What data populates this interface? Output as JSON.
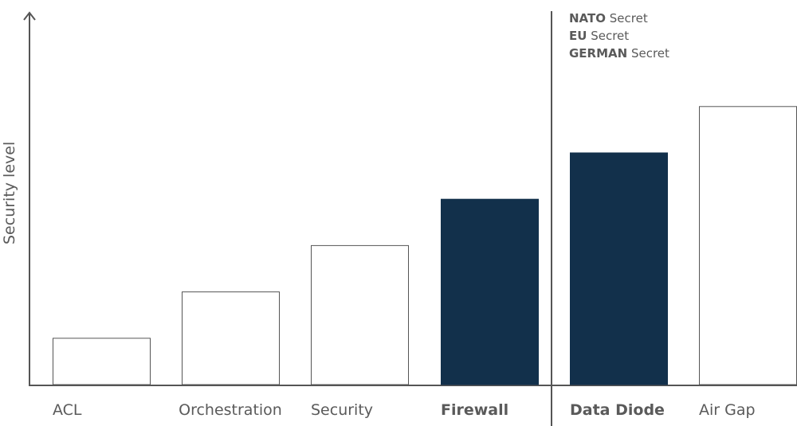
{
  "chart_data": {
    "type": "bar",
    "title": "",
    "xlabel": "",
    "ylabel": "Security level",
    "categories": [
      "ACL",
      "Orchestration",
      "Security",
      "Firewall",
      "Data Diode",
      "Air Gap"
    ],
    "values": [
      1,
      2,
      3,
      4,
      5,
      6
    ],
    "ylim": [
      0,
      8
    ],
    "grid": false,
    "highlighted": [
      "Firewall",
      "Data Diode"
    ],
    "colors": {
      "highlight": "#12304b",
      "normal": "#ffffff",
      "outline": "#555555",
      "text": "#5a5a5a"
    },
    "divider_after": "Firewall",
    "annotation": [
      {
        "bold": "NATO",
        "text": " Secret"
      },
      {
        "bold": "EU",
        "text": " Secret"
      },
      {
        "bold": "GERMAN",
        "text": " Secret"
      }
    ]
  }
}
